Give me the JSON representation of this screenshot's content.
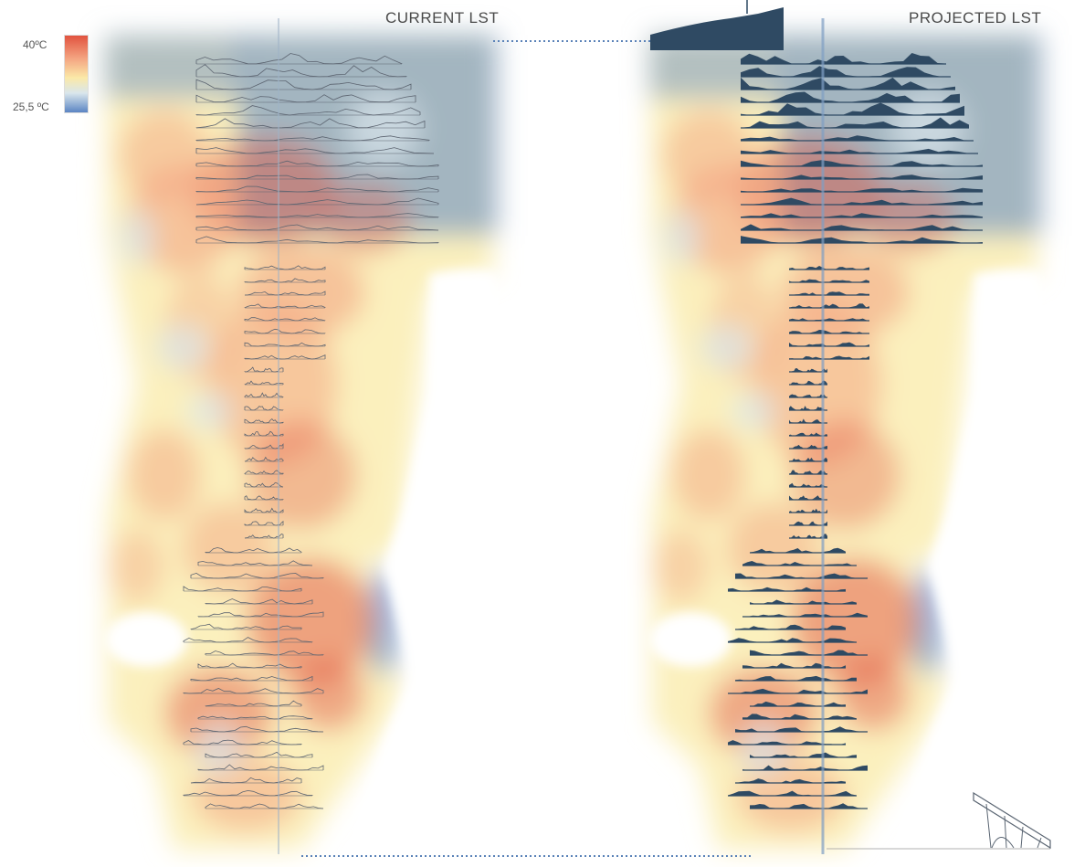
{
  "panels": {
    "current": {
      "title": "CURRENT LST"
    },
    "projected": {
      "title": "PROJECTED LST"
    }
  },
  "legend": {
    "max_label": "40ºC",
    "min_label": "25,5 ºC",
    "colors": [
      "#e1533f",
      "#f4a582",
      "#fbe9a8",
      "#d9e6ec",
      "#5b85c3"
    ]
  },
  "style": {
    "section_dark": "#2f4a63",
    "section_line": "#5c6470",
    "connector": "#5a82b8"
  }
}
